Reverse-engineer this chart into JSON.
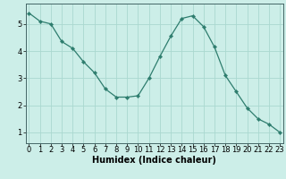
{
  "x": [
    0,
    1,
    2,
    3,
    4,
    5,
    6,
    7,
    8,
    9,
    10,
    11,
    12,
    13,
    14,
    15,
    16,
    17,
    18,
    19,
    20,
    21,
    22,
    23
  ],
  "y": [
    5.4,
    5.1,
    5.0,
    4.35,
    4.1,
    3.6,
    3.2,
    2.6,
    2.3,
    2.3,
    2.35,
    3.0,
    3.8,
    4.55,
    5.2,
    5.3,
    4.9,
    4.15,
    3.1,
    2.5,
    1.9,
    1.5,
    1.3,
    1.0
  ],
  "line_color": "#2e7d6e",
  "marker": "D",
  "marker_size": 2.2,
  "bg_color": "#cceee8",
  "grid_color": "#aad8d0",
  "xlabel": "Humidex (Indice chaleur)",
  "xlim": [
    -0.3,
    23.3
  ],
  "ylim": [
    0.6,
    5.75
  ],
  "yticks": [
    1,
    2,
    3,
    4,
    5
  ],
  "xticks": [
    0,
    1,
    2,
    3,
    4,
    5,
    6,
    7,
    8,
    9,
    10,
    11,
    12,
    13,
    14,
    15,
    16,
    17,
    18,
    19,
    20,
    21,
    22,
    23
  ],
  "axis_label_fontsize": 7,
  "tick_fontsize": 6
}
